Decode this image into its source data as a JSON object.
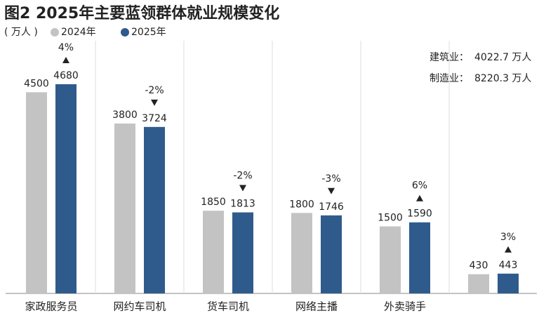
{
  "chart_data": {
    "type": "bar",
    "title": "图2 2025年主要蓝领群体就业规模变化",
    "unit_label": "( 万人 )",
    "categories": [
      "家政服务员",
      "网约车司机",
      "货车司机",
      "网络主播",
      "外卖骑手",
      null
    ],
    "series": [
      {
        "name": "2024年",
        "color": "#c3c3c3",
        "values": [
          4500,
          3800,
          1850,
          1800,
          1500,
          430
        ]
      },
      {
        "name": "2025年",
        "color": "#2f5b8c",
        "values": [
          4680,
          3724,
          1813,
          1746,
          1590,
          443
        ]
      }
    ],
    "change_labels": [
      "4%",
      "-2%",
      "-2%",
      "-3%",
      "6%",
      "3%"
    ],
    "annotations": [
      {
        "label": "建筑业：",
        "value": "4022.7 万人"
      },
      {
        "label": "制造业：",
        "value": "8220.3 万人"
      }
    ],
    "ylim": [
      0,
      5700
    ]
  }
}
